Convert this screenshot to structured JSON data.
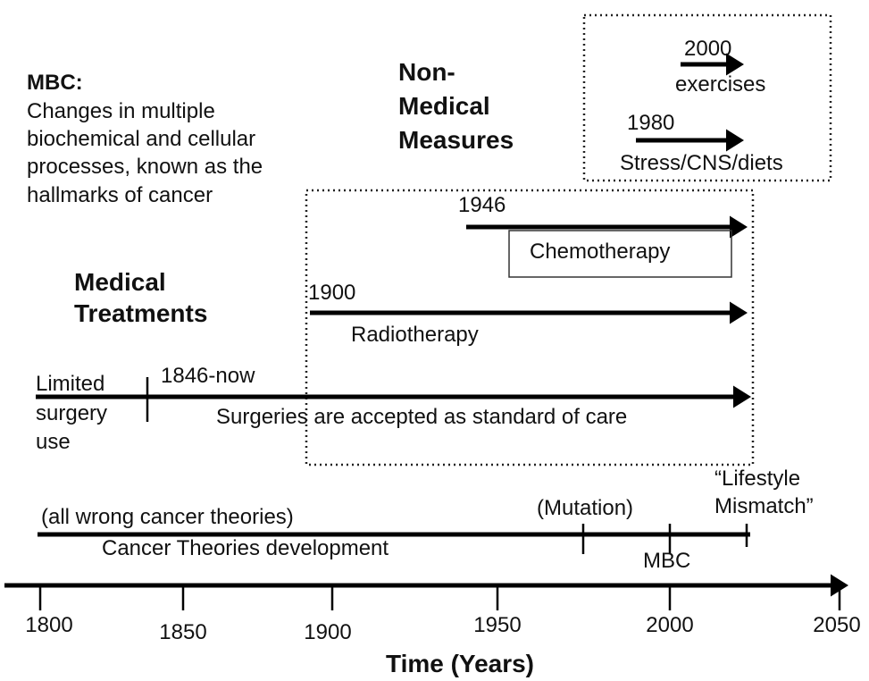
{
  "mbc_note": {
    "title": "MBC:",
    "lines": [
      "Changes in multiple",
      "biochemical and cellular",
      "processes, known as the",
      "hallmarks of cancer"
    ]
  },
  "non_medical": {
    "heading": [
      "Non-",
      "Medical",
      "Measures"
    ],
    "items": [
      {
        "year": "2000",
        "label": "exercises"
      },
      {
        "year": "1980",
        "label": "Stress/CNS/diets"
      }
    ]
  },
  "medical": {
    "heading": [
      "Medical",
      "Treatments"
    ],
    "before": [
      "Limited",
      "surgery",
      "use"
    ],
    "items": [
      {
        "year": "1946",
        "label": "Chemotherapy"
      },
      {
        "year": "1900",
        "label": "Radiotherapy"
      },
      {
        "year": "1846-now",
        "label": "Surgeries are accepted as standard of care"
      }
    ]
  },
  "theories": {
    "note": "(all wrong cancer theories)",
    "label": "Cancer Theories development",
    "mutation": "(Mutation)",
    "mbc": "MBC",
    "lifestyle": [
      "“Lifestyle",
      "Mismatch”"
    ]
  },
  "axis": {
    "ticks": [
      "1800",
      "1850",
      "1900",
      "1950",
      "2000",
      "2050"
    ],
    "title": "Time (Years)"
  }
}
